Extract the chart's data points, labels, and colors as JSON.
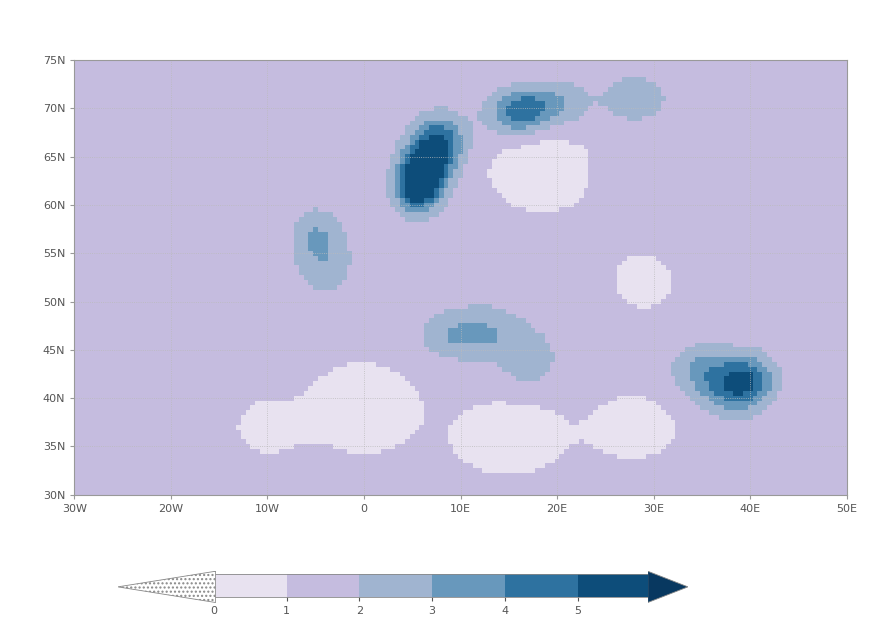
{
  "extent_lon": [
    -30,
    50
  ],
  "extent_lat": [
    30,
    75
  ],
  "lon_ticks": [
    -30,
    -20,
    -10,
    0,
    10,
    20,
    30,
    40,
    50
  ],
  "lat_ticks": [
    30,
    35,
    40,
    45,
    50,
    55,
    60,
    65,
    70,
    75
  ],
  "lon_labels": [
    "30W",
    "20W",
    "10W",
    "0",
    "10E",
    "20E",
    "30E",
    "40E",
    "50E"
  ],
  "lat_labels": [
    "30N",
    "35N",
    "40N",
    "45N",
    "50N",
    "55N",
    "60N",
    "65N",
    "70N",
    "75N"
  ],
  "levels": [
    0,
    1,
    2,
    3,
    4,
    5
  ],
  "level_colors": [
    "#e8e2f0",
    "#c5bcdf",
    "#a0b4d0",
    "#6898bc",
    "#2e72a0",
    "#0d4d7a"
  ],
  "dark_tip_color": "#083860",
  "coastline_color": "#888888",
  "coastline_lw": 0.7,
  "border_color": "#888888",
  "border_lw": 0.4,
  "grid_color": "#bbbbbb",
  "grid_ls": ":",
  "grid_lw": 0.6,
  "tick_color": "#555555",
  "tick_fontsize": 8,
  "bg_color": "#ffffff",
  "ocean_color": "#ffffff",
  "figsize": [
    8.73,
    6.27
  ],
  "dpi": 100
}
